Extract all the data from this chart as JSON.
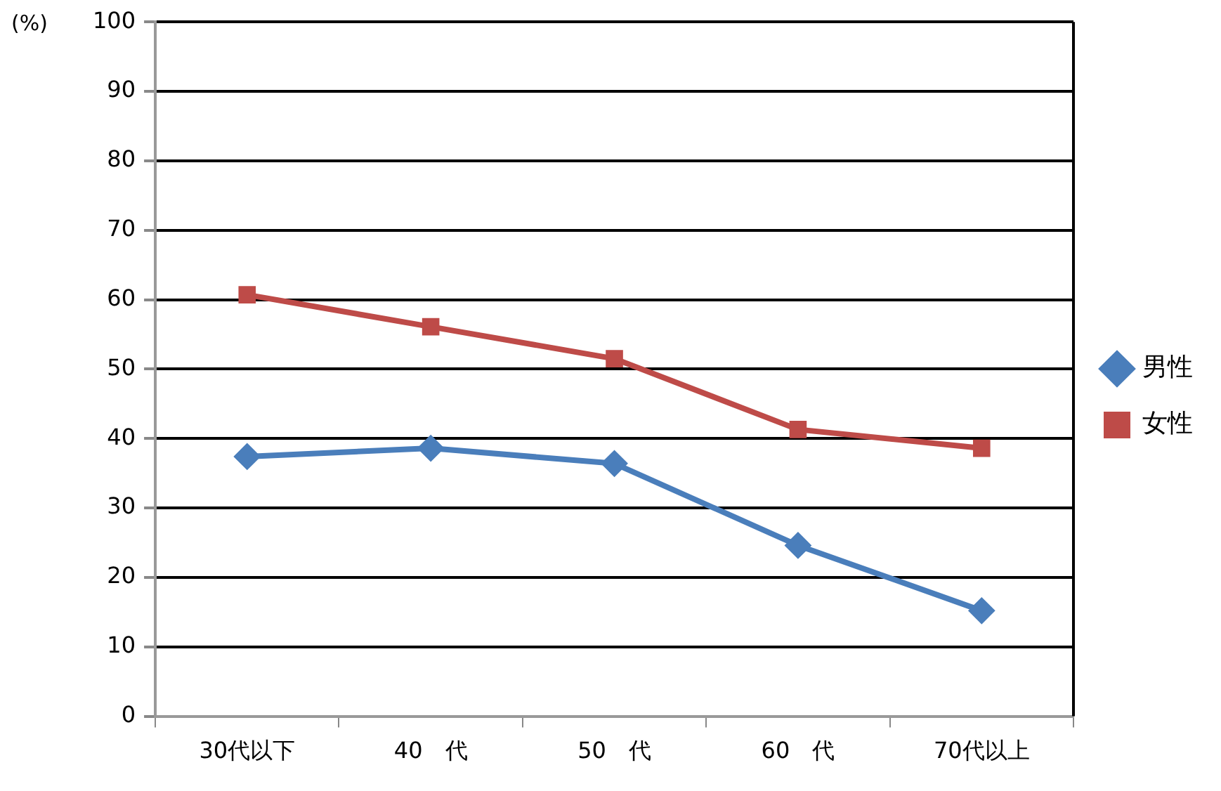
{
  "chart_data": {
    "type": "line",
    "ylabel": "(%)",
    "categories": [
      "30代以下",
      "40　代",
      "50　代",
      "60　代",
      "70代以上"
    ],
    "series": [
      {
        "name": "男性",
        "color": "#4a7ebb",
        "marker": "diamond",
        "values": [
          37.4,
          38.6,
          36.4,
          24.6,
          15.2
        ]
      },
      {
        "name": "女性",
        "color": "#be4b48",
        "marker": "square",
        "values": [
          60.7,
          56.1,
          51.5,
          41.3,
          38.6
        ]
      }
    ],
    "ylim": [
      0,
      100
    ],
    "yticks": [
      0,
      10,
      20,
      30,
      40,
      50,
      60,
      70,
      80,
      90,
      100
    ],
    "grid": "y",
    "legend": "right",
    "line_style": "solid"
  }
}
